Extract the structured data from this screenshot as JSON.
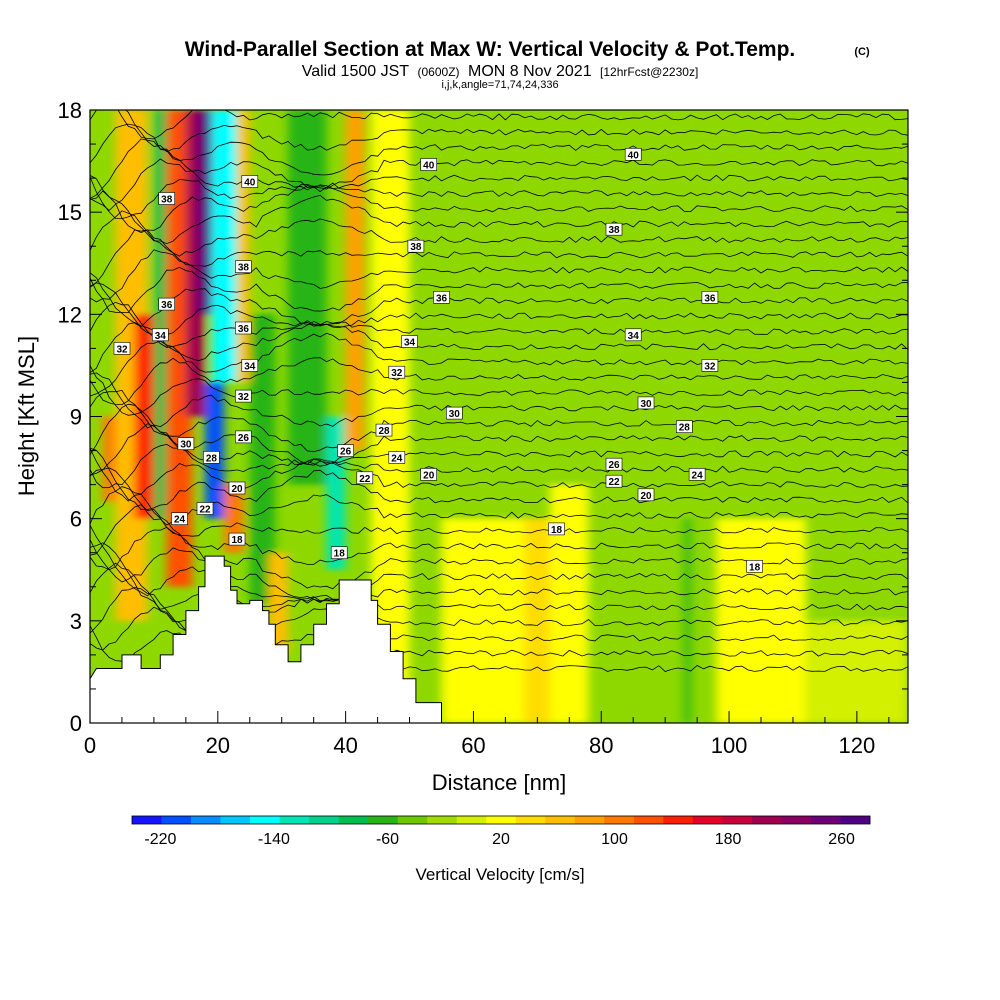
{
  "title": "Wind-Parallel Section at Max W: Vertical Velocity & Pot.Temp.",
  "title_mark": "(C)",
  "subtitle": {
    "valid": "Valid 1500 JST",
    "utc": "(0600Z)",
    "date": "MON 8 Nov 2021",
    "forecast": "[12hrFcst@2230z]",
    "indices": "i,j,k,angle=71,74,24,336"
  },
  "chart_data": {
    "type": "heatmap",
    "xlabel": "Distance [nm]",
    "ylabel": "Height [Kft MSL]",
    "xlim": [
      0,
      128
    ],
    "ylim": [
      0,
      18
    ],
    "x_ticks": [
      "0",
      "20",
      "40",
      "60",
      "80",
      "100",
      "120"
    ],
    "y_ticks": [
      "0",
      "3",
      "6",
      "9",
      "12",
      "15",
      "18"
    ],
    "grid": false,
    "background_color": "#8ed800",
    "terrain": [
      [
        0,
        1.3
      ],
      [
        1,
        1.6
      ],
      [
        5,
        1.6
      ],
      [
        5,
        2.0
      ],
      [
        8,
        2.0
      ],
      [
        8,
        1.6
      ],
      [
        11,
        1.6
      ],
      [
        11,
        2.0
      ],
      [
        13,
        2.0
      ],
      [
        13,
        2.6
      ],
      [
        15,
        2.6
      ],
      [
        15,
        3.3
      ],
      [
        17,
        3.3
      ],
      [
        17,
        4.0
      ],
      [
        18,
        4.0
      ],
      [
        18,
        4.9
      ],
      [
        21,
        4.9
      ],
      [
        21,
        4.6
      ],
      [
        22,
        4.6
      ],
      [
        22,
        3.9
      ],
      [
        23,
        3.9
      ],
      [
        23,
        3.5
      ],
      [
        25,
        3.5
      ],
      [
        25,
        3.6
      ],
      [
        27,
        3.6
      ],
      [
        27,
        3.3
      ],
      [
        28,
        3.3
      ],
      [
        28,
        2.9
      ],
      [
        29,
        2.9
      ],
      [
        29,
        2.3
      ],
      [
        31,
        2.3
      ],
      [
        31,
        1.8
      ],
      [
        33,
        1.8
      ],
      [
        33,
        2.3
      ],
      [
        35,
        2.3
      ],
      [
        35,
        2.9
      ],
      [
        37,
        2.9
      ],
      [
        37,
        3.5
      ],
      [
        39,
        3.5
      ],
      [
        39,
        4.2
      ],
      [
        44,
        4.2
      ],
      [
        44,
        3.6
      ],
      [
        45,
        3.6
      ],
      [
        45,
        2.9
      ],
      [
        47,
        2.9
      ],
      [
        47,
        2.1
      ],
      [
        49,
        2.1
      ],
      [
        49,
        1.3
      ],
      [
        51,
        1.3
      ],
      [
        51,
        0.6
      ],
      [
        55,
        0.6
      ],
      [
        55,
        0
      ]
    ],
    "velocity_bands": [
      {
        "x0": 2,
        "x1": 4,
        "ymin": 6.5,
        "ymax": 9,
        "value": 100
      },
      {
        "x0": 4,
        "x1": 9,
        "ymin": 3,
        "ymax": 18,
        "value": 60
      },
      {
        "x0": 7,
        "x1": 10,
        "ymin": 6,
        "ymax": 12,
        "value": 150
      },
      {
        "x0": 10,
        "x1": 12,
        "ymin": 6,
        "ymax": 18,
        "value": -80
      },
      {
        "x0": 12,
        "x1": 16,
        "ymin": 4,
        "ymax": 18,
        "value": 130
      },
      {
        "x0": 15,
        "x1": 18,
        "ymin": 9,
        "ymax": 18,
        "value": 210
      },
      {
        "x0": 17,
        "x1": 19,
        "ymin": 12,
        "ymax": 18,
        "value": 270
      },
      {
        "x0": 18,
        "x1": 21,
        "ymin": 6,
        "ymax": 10,
        "value": -210
      },
      {
        "x0": 19,
        "x1": 23,
        "ymin": 10,
        "ymax": 18,
        "value": -140
      },
      {
        "x0": 21,
        "x1": 24,
        "ymin": 5,
        "ymax": 7,
        "value": 110
      },
      {
        "x0": 23,
        "x1": 25,
        "ymin": 10,
        "ymax": 18,
        "value": 60
      },
      {
        "x0": 25,
        "x1": 29,
        "ymin": 3.5,
        "ymax": 12,
        "value": -60
      },
      {
        "x0": 28,
        "x1": 31,
        "ymin": 2,
        "ymax": 5,
        "value": 60
      },
      {
        "x0": 31,
        "x1": 37,
        "ymin": 7,
        "ymax": 18,
        "value": -60
      },
      {
        "x0": 37,
        "x1": 40,
        "ymin": 4.5,
        "ymax": 9,
        "value": -120
      },
      {
        "x0": 40,
        "x1": 43,
        "ymin": 8,
        "ymax": 18,
        "value": 90
      },
      {
        "x0": 44,
        "x1": 50,
        "ymin": 0.6,
        "ymax": 18,
        "value": 20
      },
      {
        "x0": 55,
        "x1": 68,
        "ymin": 0,
        "ymax": 6,
        "value": 10
      },
      {
        "x0": 68,
        "x1": 72,
        "ymin": 0,
        "ymax": 6,
        "value": 40
      },
      {
        "x0": 72,
        "x1": 78,
        "ymin": 0,
        "ymax": 7,
        "value": 15
      },
      {
        "x0": 93,
        "x1": 94,
        "ymin": 0,
        "ymax": 6,
        "value": -60
      },
      {
        "x0": 98,
        "x1": 112,
        "ymin": 0,
        "ymax": 6,
        "value": 10
      },
      {
        "x0": 112,
        "x1": 128,
        "ymin": 0,
        "ymax": 3,
        "value": 0
      }
    ],
    "theta_labels": [
      {
        "x": 85,
        "y": 16.7,
        "text": "40"
      },
      {
        "x": 53,
        "y": 16.4,
        "text": "40"
      },
      {
        "x": 25,
        "y": 15.9,
        "text": "40"
      },
      {
        "x": 82,
        "y": 14.5,
        "text": "38"
      },
      {
        "x": 51,
        "y": 14.0,
        "text": "38"
      },
      {
        "x": 24,
        "y": 13.4,
        "text": "38"
      },
      {
        "x": 12,
        "y": 15.4,
        "text": "38"
      },
      {
        "x": 55,
        "y": 12.5,
        "text": "36"
      },
      {
        "x": 97,
        "y": 12.5,
        "text": "36"
      },
      {
        "x": 12,
        "y": 12.3,
        "text": "36"
      },
      {
        "x": 24,
        "y": 11.6,
        "text": "36"
      },
      {
        "x": 85,
        "y": 11.4,
        "text": "34"
      },
      {
        "x": 50,
        "y": 11.2,
        "text": "34"
      },
      {
        "x": 11,
        "y": 11.4,
        "text": "34"
      },
      {
        "x": 25,
        "y": 10.5,
        "text": "34"
      },
      {
        "x": 5,
        "y": 11.0,
        "text": "32"
      },
      {
        "x": 97,
        "y": 10.5,
        "text": "32"
      },
      {
        "x": 48,
        "y": 10.3,
        "text": "32"
      },
      {
        "x": 24,
        "y": 9.6,
        "text": "32"
      },
      {
        "x": 57,
        "y": 9.1,
        "text": "30"
      },
      {
        "x": 87,
        "y": 9.4,
        "text": "30"
      },
      {
        "x": 15,
        "y": 8.2,
        "text": "30"
      },
      {
        "x": 93,
        "y": 8.7,
        "text": "28"
      },
      {
        "x": 46,
        "y": 8.6,
        "text": "28"
      },
      {
        "x": 19,
        "y": 7.8,
        "text": "28"
      },
      {
        "x": 24,
        "y": 8.4,
        "text": "26"
      },
      {
        "x": 40,
        "y": 8.0,
        "text": "26"
      },
      {
        "x": 82,
        "y": 7.6,
        "text": "26"
      },
      {
        "x": 48,
        "y": 7.8,
        "text": "24"
      },
      {
        "x": 95,
        "y": 7.3,
        "text": "24"
      },
      {
        "x": 14,
        "y": 6.0,
        "text": "24"
      },
      {
        "x": 43,
        "y": 7.2,
        "text": "22"
      },
      {
        "x": 82,
        "y": 7.1,
        "text": "22"
      },
      {
        "x": 18,
        "y": 6.3,
        "text": "22"
      },
      {
        "x": 53,
        "y": 7.3,
        "text": "20"
      },
      {
        "x": 87,
        "y": 6.7,
        "text": "20"
      },
      {
        "x": 23,
        "y": 6.9,
        "text": "20"
      },
      {
        "x": 23,
        "y": 5.4,
        "text": "18"
      },
      {
        "x": 73,
        "y": 5.7,
        "text": "18"
      },
      {
        "x": 39,
        "y": 5.0,
        "text": "18"
      },
      {
        "x": 104,
        "y": 4.6,
        "text": "18"
      }
    ]
  },
  "colorbar": {
    "title": "Vertical Velocity [cm/s]",
    "tick_labels": [
      "-220",
      "-140",
      "-60",
      "20",
      "100",
      "180",
      "260"
    ],
    "colors": [
      "#1414ff",
      "#0050ff",
      "#0a8cff",
      "#00c8ff",
      "#00ffff",
      "#00e6b4",
      "#00d28c",
      "#00be50",
      "#28b414",
      "#6ec800",
      "#a0dc00",
      "#d2f000",
      "#ffff00",
      "#ffdc00",
      "#ffbe00",
      "#ffa000",
      "#ff7800",
      "#ff5000",
      "#ff1e00",
      "#e60028",
      "#c8003c",
      "#a00050",
      "#8c0064",
      "#6e0078",
      "#500082"
    ]
  }
}
